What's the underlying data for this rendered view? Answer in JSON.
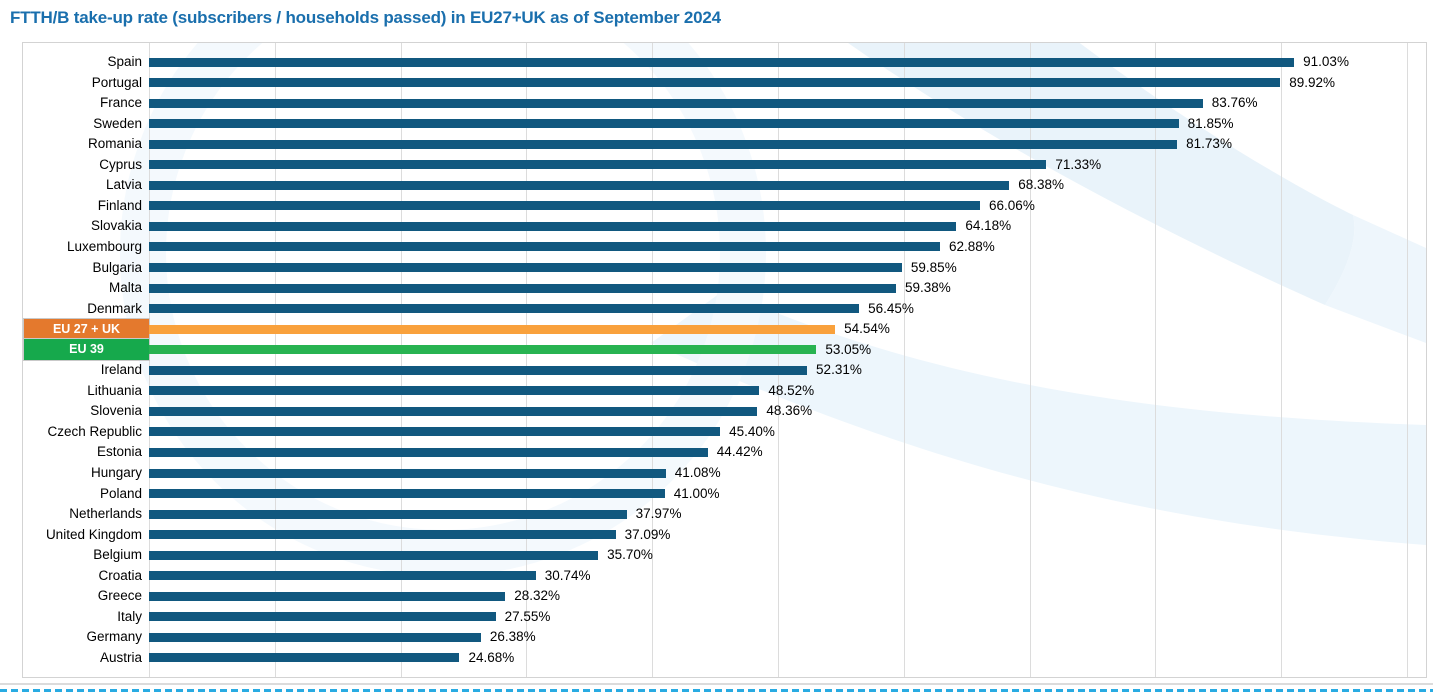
{
  "title": "FTTH/B take-up rate (subscribers / households passed) in EU27+UK as of September 2024",
  "colors": {
    "title_text": "#1a6fad",
    "bar_default": "#11587f",
    "eu27uk_bar": "#f9a13c",
    "eu27uk_label_bg": "#e4792d",
    "eu39_bar": "#28b351",
    "eu39_label_bg": "#16a94c",
    "gridline": "#dcdcdc",
    "plot_border": "#d3d3d3",
    "value_text": "#000000",
    "bottom_dashed_line": "#29abe2",
    "watermark_blue": "#e9f3fa"
  },
  "chart_data": {
    "type": "bar",
    "orientation": "horizontal",
    "title": "FTTH/B take-up rate (subscribers / households passed) in EU27+UK as of September 2024",
    "xlabel": "",
    "ylabel": "",
    "xlim": [
      0,
      100
    ],
    "gridline_step": 10,
    "grid": true,
    "legend_position": "none",
    "value_format": "percent",
    "rows": [
      {
        "label": "Spain",
        "value": 91.03,
        "display": "91.03%",
        "kind": "country"
      },
      {
        "label": "Portugal",
        "value": 89.92,
        "display": "89.92%",
        "kind": "country"
      },
      {
        "label": "France",
        "value": 83.76,
        "display": "83.76%",
        "kind": "country"
      },
      {
        "label": "Sweden",
        "value": 81.85,
        "display": "81.85%",
        "kind": "country"
      },
      {
        "label": "Romania",
        "value": 81.73,
        "display": "81.73%",
        "kind": "country"
      },
      {
        "label": "Cyprus",
        "value": 71.33,
        "display": "71.33%",
        "kind": "country"
      },
      {
        "label": "Latvia",
        "value": 68.38,
        "display": "68.38%",
        "kind": "country"
      },
      {
        "label": "Finland",
        "value": 66.06,
        "display": "66.06%",
        "kind": "country"
      },
      {
        "label": "Slovakia",
        "value": 64.18,
        "display": "64.18%",
        "kind": "country"
      },
      {
        "label": "Luxembourg",
        "value": 62.88,
        "display": "62.88%",
        "kind": "country"
      },
      {
        "label": "Bulgaria",
        "value": 59.85,
        "display": "59.85%",
        "kind": "country"
      },
      {
        "label": "Malta",
        "value": 59.38,
        "display": "59.38%",
        "kind": "country"
      },
      {
        "label": "Denmark",
        "value": 56.45,
        "display": "56.45%",
        "kind": "country"
      },
      {
        "label": "EU 27 + UK",
        "value": 54.54,
        "display": "54.54%",
        "kind": "eu27uk"
      },
      {
        "label": "EU 39",
        "value": 53.05,
        "display": "53.05%",
        "kind": "eu39"
      },
      {
        "label": "Ireland",
        "value": 52.31,
        "display": "52.31%",
        "kind": "country"
      },
      {
        "label": "Lithuania",
        "value": 48.52,
        "display": "48.52%",
        "kind": "country"
      },
      {
        "label": "Slovenia",
        "value": 48.36,
        "display": "48.36%",
        "kind": "country"
      },
      {
        "label": "Czech Republic",
        "value": 45.4,
        "display": "45.40%",
        "kind": "country"
      },
      {
        "label": "Estonia",
        "value": 44.42,
        "display": "44.42%",
        "kind": "country"
      },
      {
        "label": "Hungary",
        "value": 41.08,
        "display": "41.08%",
        "kind": "country"
      },
      {
        "label": "Poland",
        "value": 41.0,
        "display": "41.00%",
        "kind": "country"
      },
      {
        "label": "Netherlands",
        "value": 37.97,
        "display": "37.97%",
        "kind": "country"
      },
      {
        "label": "United Kingdom",
        "value": 37.09,
        "display": "37.09%",
        "kind": "country"
      },
      {
        "label": "Belgium",
        "value": 35.7,
        "display": "35.70%",
        "kind": "country"
      },
      {
        "label": "Croatia",
        "value": 30.74,
        "display": "30.74%",
        "kind": "country"
      },
      {
        "label": "Greece",
        "value": 28.32,
        "display": "28.32%",
        "kind": "country"
      },
      {
        "label": "Italy",
        "value": 27.55,
        "display": "27.55%",
        "kind": "country"
      },
      {
        "label": "Germany",
        "value": 26.38,
        "display": "26.38%",
        "kind": "country"
      },
      {
        "label": "Austria",
        "value": 24.68,
        "display": "24.68%",
        "kind": "country"
      }
    ]
  }
}
